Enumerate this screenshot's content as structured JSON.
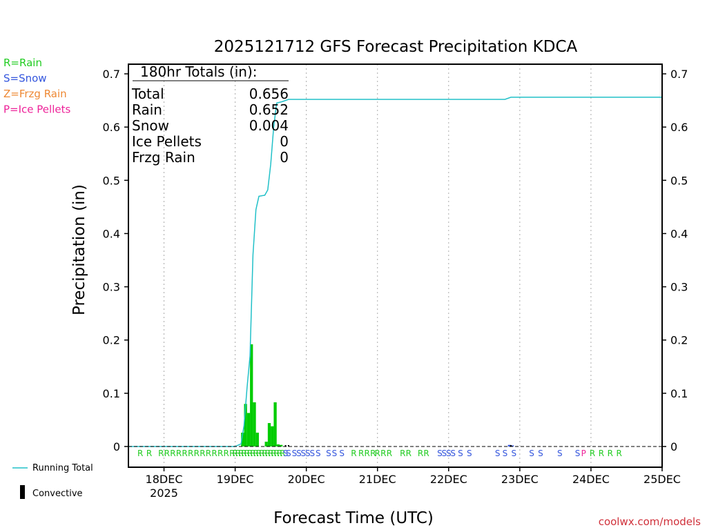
{
  "title": "2025121712 GFS Forecast Precipitation KDCA",
  "legend_ptype": [
    {
      "label": "R=Rain",
      "color": "#22cc22"
    },
    {
      "label": "S=Snow",
      "color": "#3355dd"
    },
    {
      "label": "Z=Frzg Rain",
      "color": "#ee8833"
    },
    {
      "label": "P=Ice Pellets",
      "color": "#ee2299"
    }
  ],
  "totals_box": {
    "heading": "180hr Totals (in):",
    "rows": [
      {
        "label": "Total",
        "value": "0.656"
      },
      {
        "label": "Rain",
        "value": "0.652"
      },
      {
        "label": "Snow",
        "value": "0.004"
      },
      {
        "label": "Ice Pellets",
        "value": "0"
      },
      {
        "label": "Frzg Rain",
        "value": "0"
      }
    ]
  },
  "bottom_legend": {
    "running_total": "Running Total",
    "convective": "Convective"
  },
  "credit": "coolwx.com/models",
  "colors": {
    "running_total": "#20c0c8",
    "bars": "#00cc00",
    "rain": "#22cc22",
    "snow": "#3355dd",
    "ice_pellets": "#ee2299",
    "convective": "#000000",
    "grid": "#aaaaaa"
  },
  "chart_data": {
    "type": "bar",
    "title": "2025121712 GFS Forecast Precipitation KDCA",
    "xlabel": "Forecast Time (UTC)",
    "ylabel": "Precipitation (in)",
    "xlim_hours": [
      -12,
      168
    ],
    "ylim": [
      0,
      0.7
    ],
    "y_ticks": [
      0,
      0.1,
      0.2,
      0.3,
      0.4,
      0.5,
      0.6,
      0.7
    ],
    "x_ticks": [
      {
        "hour": 0,
        "label": "18DEC",
        "sublabel": "2025"
      },
      {
        "hour": 24,
        "label": "19DEC"
      },
      {
        "hour": 48,
        "label": "20DEC"
      },
      {
        "hour": 72,
        "label": "21DEC"
      },
      {
        "hour": 96,
        "label": "22DEC"
      },
      {
        "hour": 120,
        "label": "23DEC"
      },
      {
        "hour": 144,
        "label": "24DEC"
      },
      {
        "hour": 168,
        "label": "25DEC"
      }
    ],
    "grid": "vertical dotted",
    "bars": [
      {
        "hour": 27,
        "value": 0.026
      },
      {
        "hour": 28,
        "value": 0.08
      },
      {
        "hour": 29,
        "value": 0.063
      },
      {
        "hour": 30,
        "value": 0.192
      },
      {
        "hour": 31,
        "value": 0.083
      },
      {
        "hour": 32,
        "value": 0.026
      },
      {
        "hour": 35,
        "value": 0.009
      },
      {
        "hour": 36,
        "value": 0.044
      },
      {
        "hour": 37,
        "value": 0.038
      },
      {
        "hour": 38,
        "value": 0.083
      },
      {
        "hour": 39,
        "value": 0.004
      },
      {
        "hour": 40,
        "value": 0.003
      },
      {
        "hour": 117,
        "value": 0.003
      },
      {
        "hour": 118,
        "value": 0.002
      }
    ],
    "running_total": {
      "name": "Running Total",
      "points": [
        [
          -12,
          0
        ],
        [
          24,
          0
        ],
        [
          26,
          0.005
        ],
        [
          27,
          0.04
        ],
        [
          28,
          0.11
        ],
        [
          29,
          0.17
        ],
        [
          30,
          0.36
        ],
        [
          31,
          0.445
        ],
        [
          32,
          0.47
        ],
        [
          34,
          0.472
        ],
        [
          35,
          0.482
        ],
        [
          36,
          0.53
        ],
        [
          37,
          0.6
        ],
        [
          38,
          0.645
        ],
        [
          40,
          0.648
        ],
        [
          42,
          0.652
        ],
        [
          115,
          0.652
        ],
        [
          117,
          0.656
        ],
        [
          168,
          0.656
        ]
      ]
    },
    "ptype_markers": [
      {
        "hour": -8,
        "type": "R"
      },
      {
        "hour": -5,
        "type": "R"
      },
      {
        "hour": -1,
        "type": "R"
      },
      {
        "hour": 1,
        "type": "R"
      },
      {
        "hour": 3,
        "type": "R"
      },
      {
        "hour": 5,
        "type": "R"
      },
      {
        "hour": 7,
        "type": "R"
      },
      {
        "hour": 9,
        "type": "R"
      },
      {
        "hour": 11,
        "type": "R"
      },
      {
        "hour": 13,
        "type": "R"
      },
      {
        "hour": 15,
        "type": "R"
      },
      {
        "hour": 17,
        "type": "R"
      },
      {
        "hour": 19,
        "type": "R"
      },
      {
        "hour": 21,
        "type": "R"
      },
      {
        "hour": 23,
        "type": "R"
      },
      {
        "hour": 24,
        "type": "R"
      },
      {
        "hour": 25,
        "type": "R"
      },
      {
        "hour": 26,
        "type": "R"
      },
      {
        "hour": 27,
        "type": "R"
      },
      {
        "hour": 28,
        "type": "R"
      },
      {
        "hour": 29,
        "type": "R"
      },
      {
        "hour": 30,
        "type": "R"
      },
      {
        "hour": 31,
        "type": "R"
      },
      {
        "hour": 32,
        "type": "R"
      },
      {
        "hour": 33,
        "type": "R"
      },
      {
        "hour": 34,
        "type": "R"
      },
      {
        "hour": 35,
        "type": "R"
      },
      {
        "hour": 36,
        "type": "R"
      },
      {
        "hour": 37,
        "type": "R"
      },
      {
        "hour": 38,
        "type": "R"
      },
      {
        "hour": 39,
        "type": "R"
      },
      {
        "hour": 40,
        "type": "R"
      },
      {
        "hour": 41,
        "type": "S"
      },
      {
        "hour": 42,
        "type": "S"
      },
      {
        "hour": 44,
        "type": "S"
      },
      {
        "hour": 45.5,
        "type": "S"
      },
      {
        "hour": 47,
        "type": "S"
      },
      {
        "hour": 48.5,
        "type": "S"
      },
      {
        "hour": 50,
        "type": "S"
      },
      {
        "hour": 52,
        "type": "S"
      },
      {
        "hour": 55.5,
        "type": "S"
      },
      {
        "hour": 57.5,
        "type": "S"
      },
      {
        "hour": 60,
        "type": "S"
      },
      {
        "hour": 64,
        "type": "R"
      },
      {
        "hour": 66.5,
        "type": "R"
      },
      {
        "hour": 68.5,
        "type": "R"
      },
      {
        "hour": 70.5,
        "type": "R"
      },
      {
        "hour": 72,
        "type": "R"
      },
      {
        "hour": 74,
        "type": "R"
      },
      {
        "hour": 76,
        "type": "R"
      },
      {
        "hour": 80.5,
        "type": "R"
      },
      {
        "hour": 82.5,
        "type": "R"
      },
      {
        "hour": 86.5,
        "type": "R"
      },
      {
        "hour": 88.5,
        "type": "R"
      },
      {
        "hour": 93,
        "type": "S"
      },
      {
        "hour": 94.5,
        "type": "S"
      },
      {
        "hour": 96,
        "type": "S"
      },
      {
        "hour": 97.5,
        "type": "S"
      },
      {
        "hour": 100,
        "type": "S"
      },
      {
        "hour": 103,
        "type": "S"
      },
      {
        "hour": 112.5,
        "type": "S"
      },
      {
        "hour": 115,
        "type": "S"
      },
      {
        "hour": 118,
        "type": "S"
      },
      {
        "hour": 124,
        "type": "S"
      },
      {
        "hour": 127,
        "type": "S"
      },
      {
        "hour": 133.5,
        "type": "S"
      },
      {
        "hour": 139.5,
        "type": "S"
      },
      {
        "hour": 141.5,
        "type": "P"
      },
      {
        "hour": 144.5,
        "type": "R"
      },
      {
        "hour": 147.5,
        "type": "R"
      },
      {
        "hour": 150.5,
        "type": "R"
      },
      {
        "hour": 153.5,
        "type": "R"
      }
    ]
  }
}
